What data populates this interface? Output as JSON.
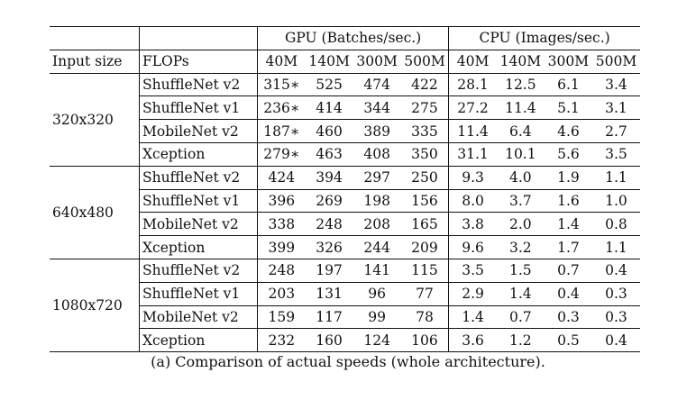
{
  "table": {
    "group_headers": {
      "gpu": "GPU (Batches/sec.)",
      "cpu": "CPU (Images/sec.)"
    },
    "col_headers": {
      "input_size": "Input size",
      "model": "FLOPs",
      "flops": [
        "40M",
        "140M",
        "300M",
        "500M"
      ]
    },
    "groups": [
      {
        "input_size": "320x320",
        "rows": [
          {
            "model": "ShuffleNet v2",
            "gpu": [
              "315∗",
              "525",
              "474",
              "422"
            ],
            "cpu": [
              "28.1",
              "12.5",
              "6.1",
              "3.4"
            ]
          },
          {
            "model": "ShuffleNet v1",
            "gpu": [
              "236∗",
              "414",
              "344",
              "275"
            ],
            "cpu": [
              "27.2",
              "11.4",
              "5.1",
              "3.1"
            ]
          },
          {
            "model": "MobileNet v2",
            "gpu": [
              "187∗",
              "460",
              "389",
              "335"
            ],
            "cpu": [
              "11.4",
              "6.4",
              "4.6",
              "2.7"
            ]
          },
          {
            "model": "Xception",
            "gpu": [
              "279∗",
              "463",
              "408",
              "350"
            ],
            "cpu": [
              "31.1",
              "10.1",
              "5.6",
              "3.5"
            ]
          }
        ]
      },
      {
        "input_size": "640x480",
        "rows": [
          {
            "model": "ShuffleNet v2",
            "gpu": [
              "424",
              "394",
              "297",
              "250"
            ],
            "cpu": [
              "9.3",
              "4.0",
              "1.9",
              "1.1"
            ]
          },
          {
            "model": "ShuffleNet v1",
            "gpu": [
              "396",
              "269",
              "198",
              "156"
            ],
            "cpu": [
              "8.0",
              "3.7",
              "1.6",
              "1.0"
            ]
          },
          {
            "model": "MobileNet v2",
            "gpu": [
              "338",
              "248",
              "208",
              "165"
            ],
            "cpu": [
              "3.8",
              "2.0",
              "1.4",
              "0.8"
            ]
          },
          {
            "model": "Xception",
            "gpu": [
              "399",
              "326",
              "244",
              "209"
            ],
            "cpu": [
              "9.6",
              "3.2",
              "1.7",
              "1.1"
            ]
          }
        ]
      },
      {
        "input_size": "1080x720",
        "rows": [
          {
            "model": "ShuffleNet v2",
            "gpu": [
              "248",
              "197",
              "141",
              "115"
            ],
            "cpu": [
              "3.5",
              "1.5",
              "0.7",
              "0.4"
            ]
          },
          {
            "model": "ShuffleNet v1",
            "gpu": [
              "203",
              "131",
              "96",
              "77"
            ],
            "cpu": [
              "2.9",
              "1.4",
              "0.4",
              "0.3"
            ]
          },
          {
            "model": "MobileNet v2",
            "gpu": [
              "159",
              "117",
              "99",
              "78"
            ],
            "cpu": [
              "1.4",
              "0.7",
              "0.3",
              "0.3"
            ]
          },
          {
            "model": "Xception",
            "gpu": [
              "232",
              "160",
              "124",
              "106"
            ],
            "cpu": [
              "3.6",
              "1.2",
              "0.5",
              "0.4"
            ]
          }
        ]
      }
    ]
  },
  "caption": "(a) Comparison of actual speeds (whole architecture)."
}
